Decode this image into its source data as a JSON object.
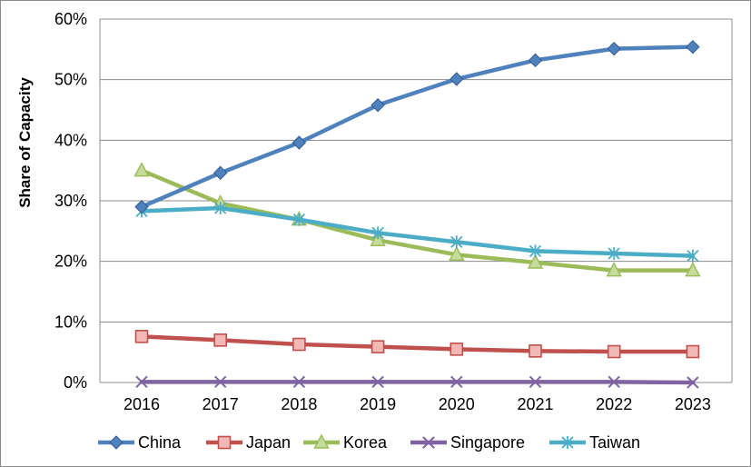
{
  "chart_data": {
    "type": "line",
    "title": "",
    "xlabel": "",
    "ylabel": "Share of Capacity",
    "categories": [
      "2016",
      "2017",
      "2018",
      "2019",
      "2020",
      "2021",
      "2022",
      "2023"
    ],
    "ylim": [
      0,
      60
    ],
    "y_ticks": [
      "0%",
      "10%",
      "20%",
      "30%",
      "40%",
      "50%",
      "60%"
    ],
    "grid": "horizontal",
    "legend_position": "bottom",
    "series": [
      {
        "name": "China",
        "color": "#4f81bd",
        "marker": "diamond",
        "values": [
          29.0,
          34.6,
          39.6,
          45.8,
          50.1,
          53.2,
          55.1,
          55.4
        ]
      },
      {
        "name": "Japan",
        "color": "#c0504d",
        "marker": "square",
        "values": [
          7.6,
          7.0,
          6.3,
          5.9,
          5.5,
          5.2,
          5.1,
          5.1
        ]
      },
      {
        "name": "Korea",
        "color": "#9bbb59",
        "marker": "triangle",
        "values": [
          35.0,
          29.6,
          26.9,
          23.5,
          21.1,
          19.8,
          18.5,
          18.5
        ]
      },
      {
        "name": "Singapore",
        "color": "#8064a2",
        "marker": "x",
        "values": [
          0.1,
          0.1,
          0.1,
          0.1,
          0.1,
          0.1,
          0.1,
          0.0
        ]
      },
      {
        "name": "Taiwan",
        "color": "#4bacc6",
        "marker": "star",
        "values": [
          28.3,
          28.8,
          26.9,
          24.7,
          23.2,
          21.7,
          21.3,
          20.9
        ]
      }
    ]
  }
}
